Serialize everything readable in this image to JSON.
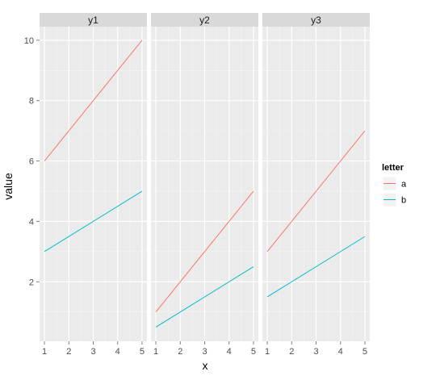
{
  "chart_data": {
    "type": "line",
    "facet_by": "variable",
    "facets": [
      {
        "label": "y1",
        "series": [
          {
            "name": "a",
            "x": [
              1,
              5
            ],
            "y": [
              6,
              10
            ]
          },
          {
            "name": "b",
            "x": [
              1,
              5
            ],
            "y": [
              3,
              5
            ]
          }
        ]
      },
      {
        "label": "y2",
        "series": [
          {
            "name": "a",
            "x": [
              1,
              5
            ],
            "y": [
              1,
              5
            ]
          },
          {
            "name": "b",
            "x": [
              1,
              5
            ],
            "y": [
              0.5,
              2.5
            ]
          }
        ]
      },
      {
        "label": "y3",
        "series": [
          {
            "name": "a",
            "x": [
              1,
              5
            ],
            "y": [
              3,
              7
            ]
          },
          {
            "name": "b",
            "x": [
              1,
              5
            ],
            "y": [
              1.5,
              3.5
            ]
          }
        ]
      }
    ],
    "xlabel": "x",
    "ylabel": "value",
    "x_ticks": [
      1,
      2,
      3,
      4,
      5
    ],
    "y_ticks": [
      2,
      4,
      6,
      8,
      10
    ],
    "xlim": [
      0.8,
      5.2
    ],
    "ylim": [
      0.03,
      10.45
    ],
    "grid": true,
    "legend": {
      "title": "letter",
      "position": "right",
      "entries": [
        {
          "label": "a",
          "color": "#F8766D"
        },
        {
          "label": "b",
          "color": "#00BFC4"
        }
      ]
    },
    "colors": {
      "a": "#F8766D",
      "b": "#00BFC4",
      "panel_background": "#EBEBEB",
      "strip_background": "#D9D9D9"
    }
  }
}
